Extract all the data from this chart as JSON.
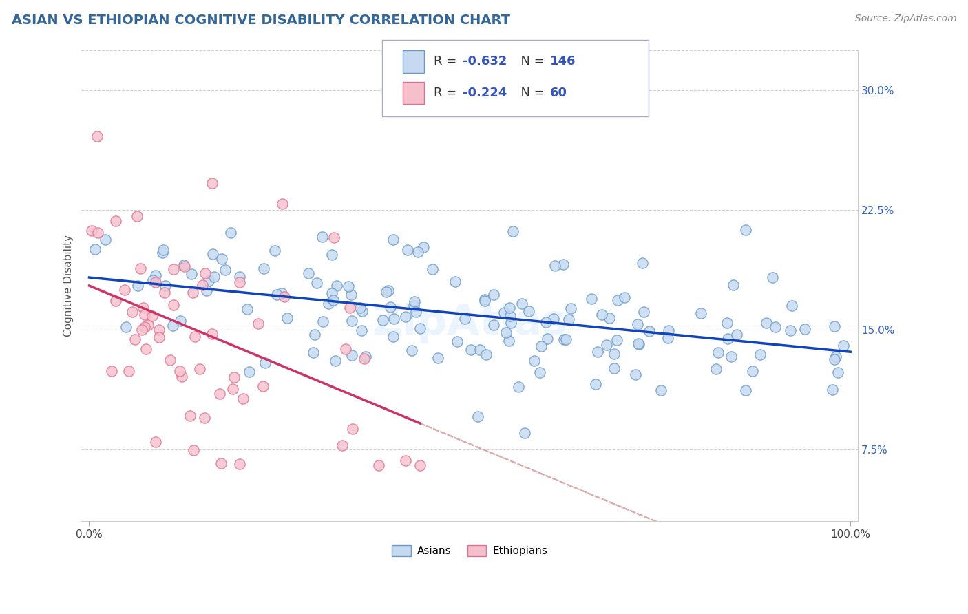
{
  "title": "ASIAN VS ETHIOPIAN COGNITIVE DISABILITY CORRELATION CHART",
  "source": "Source: ZipAtlas.com",
  "ylabel": "Cognitive Disability",
  "xlim": [
    -0.01,
    1.01
  ],
  "ylim": [
    0.03,
    0.325
  ],
  "yticks": [
    0.075,
    0.15,
    0.225,
    0.3
  ],
  "ytick_labels": [
    "7.5%",
    "15.0%",
    "22.5%",
    "30.0%"
  ],
  "xticks": [
    0.0,
    1.0
  ],
  "xtick_labels": [
    "0.0%",
    "100.0%"
  ],
  "asian_fill": "#c5d9f0",
  "asian_edge": "#6699cc",
  "ethiopian_fill": "#f5c0cc",
  "ethiopian_edge": "#e07090",
  "trend_asian_color": "#1144bb",
  "trend_ethiopian_color": "#cc3366",
  "trend_dashed_color": "#ddaaaa",
  "background_color": "#ffffff",
  "grid_color": "#cccccc",
  "title_color": "#336699",
  "title_fontsize": 14,
  "ylabel_fontsize": 11,
  "tick_fontsize": 11,
  "source_fontsize": 10,
  "legend_fontsize": 13,
  "legend_r_asian": "-0.632",
  "legend_n_asian": "146",
  "legend_r_ethiopian": "-0.224",
  "legend_n_ethiopian": "60",
  "watermark": "ZipAtlas",
  "bottom_legend": [
    "Asians",
    "Ethiopians"
  ]
}
